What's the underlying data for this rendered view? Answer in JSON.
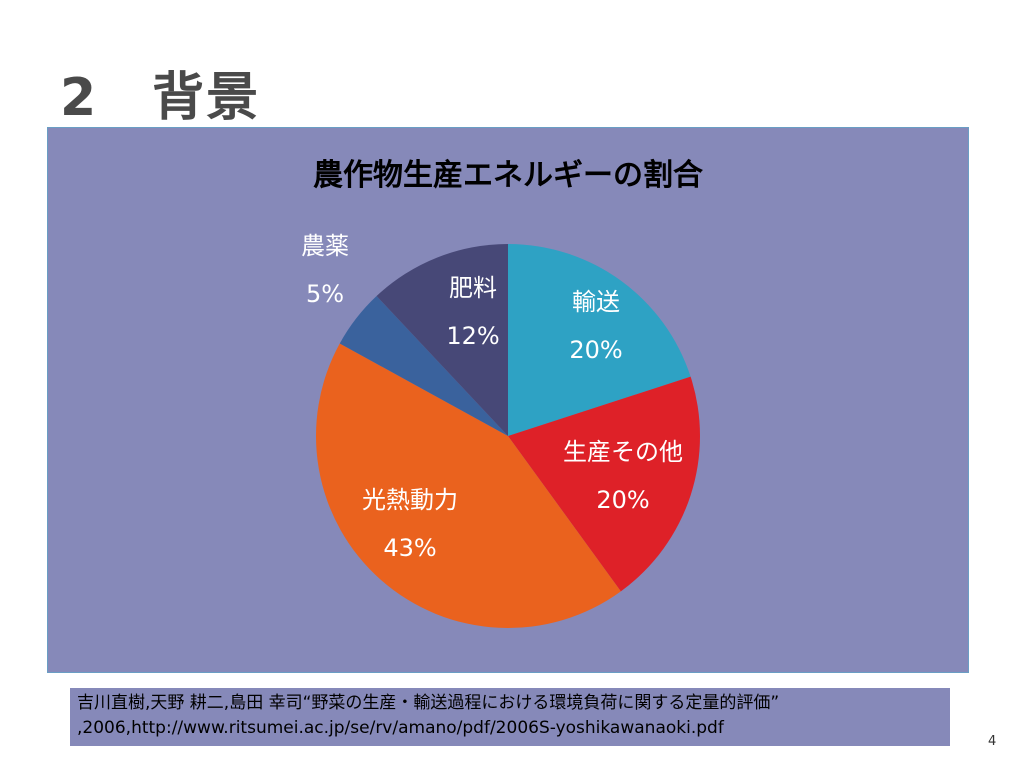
{
  "slide": {
    "title": "2　背景",
    "page_number": "4"
  },
  "chart_data": {
    "type": "pie",
    "title": "農作物生産エネルギーの割合",
    "slices": [
      {
        "name": "輸送",
        "value": 20,
        "label": "20%",
        "color": "#2ea2c4",
        "text_color": "#ffffff"
      },
      {
        "name": "生産その他",
        "value": 20,
        "label": "20%",
        "color": "#de2128",
        "text_color": "#ffffff"
      },
      {
        "name": "光熱動力",
        "value": 43,
        "label": "43%",
        "color": "#ea621e",
        "text_color": "#ffffff"
      },
      {
        "name": "農薬",
        "value": 5,
        "label": "5%",
        "color": "#3a629d",
        "text_color": "#ffffff"
      },
      {
        "name": "肥料",
        "value": 12,
        "label": "12%",
        "color": "#474877",
        "text_color": "#ffffff"
      }
    ],
    "start": "12 o'clock",
    "direction": "clockwise"
  },
  "caption": {
    "line1": "吉川直樹,天野 耕二,島田 幸司“野菜の生産・輸送過程における環境負荷に関する定量的評価”",
    "line2": ",2006,http://www.ritsumei.ac.jp/se/rv/amano/pdf/2006S-yoshikawanaoki.pdf"
  },
  "colors": {
    "chart_background": "#8689b9",
    "title_text": "#4a4a4a"
  }
}
